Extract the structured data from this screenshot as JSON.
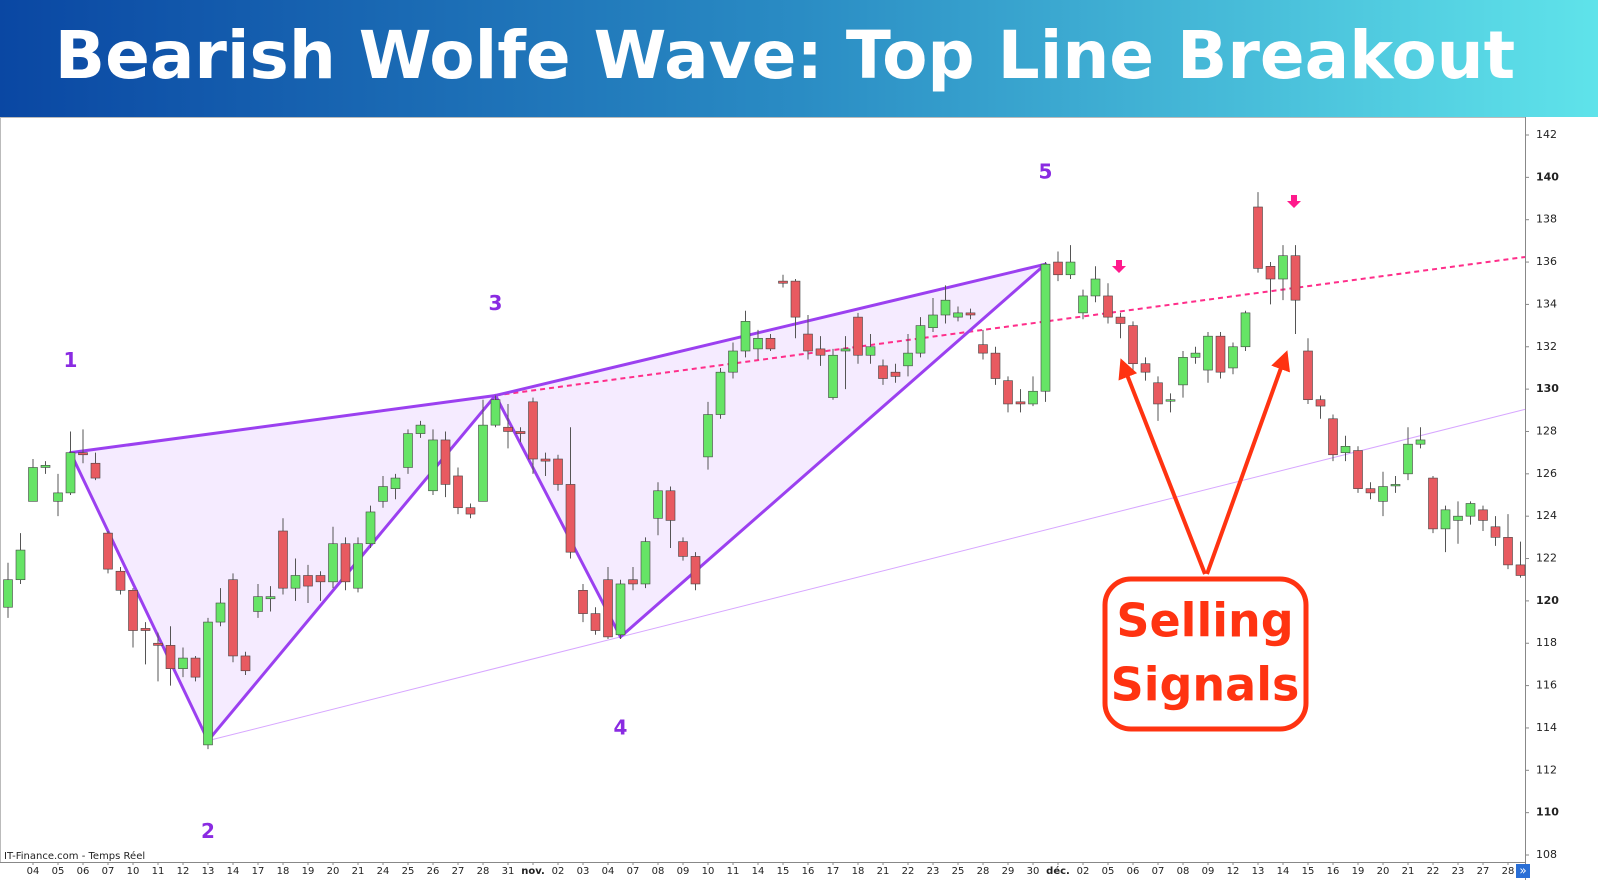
{
  "chart_data": {
    "type": "candlestick",
    "title": "Bearish Wolfe Wave: Top Line Breakout",
    "source": "IT-Finance.com - Temps Réel",
    "callout": [
      "Selling",
      "Signals"
    ],
    "nav_button": "»",
    "up_color": "#66e466",
    "down_color": "#e85a60",
    "categories": [
      null,
      null,
      "04",
      null,
      "05",
      null,
      "06",
      null,
      "07",
      null,
      "10",
      null,
      "11",
      null,
      "12",
      null,
      "13",
      null,
      "14",
      null,
      "17",
      null,
      "18",
      null,
      "19",
      null,
      "20",
      null,
      "21",
      null,
      "24",
      null,
      "25",
      null,
      "26",
      null,
      "27",
      null,
      "28",
      null,
      "31",
      null,
      "nov.",
      null,
      "02",
      null,
      "03",
      null,
      "04",
      null,
      "07",
      null,
      "08",
      null,
      "09",
      null,
      "10",
      null,
      "11",
      null,
      "14",
      null,
      "15",
      null,
      "16",
      null,
      "17",
      null,
      "18",
      null,
      "21",
      null,
      "22",
      null,
      "23",
      null,
      "25",
      null,
      "28",
      null,
      "29",
      null,
      "30",
      null,
      "déc.",
      null,
      "02",
      null,
      "05",
      null,
      "06",
      null,
      "07",
      null,
      "08",
      null,
      "09",
      null,
      "12",
      null,
      "13",
      null,
      "14",
      null,
      "15",
      null,
      "16",
      null,
      "19",
      null,
      "20",
      null,
      "21",
      null,
      "22",
      null,
      "23",
      null,
      "27",
      null,
      "28",
      null
    ],
    "open": [
      119.7,
      121.0,
      124.7,
      126.3,
      124.7,
      125.1,
      127.0,
      126.5,
      123.2,
      121.4,
      120.5,
      118.7,
      118.0,
      117.9,
      116.8,
      117.3,
      113.2,
      119.0,
      121.0,
      117.4,
      119.5,
      120.1,
      123.3,
      120.6,
      121.2,
      121.2,
      120.9,
      122.7,
      120.6,
      122.7,
      124.7,
      125.3,
      126.3,
      127.9,
      125.2,
      127.6,
      125.9,
      124.4,
      124.7,
      128.3,
      128.2,
      128.0,
      129.4,
      126.7,
      126.7,
      125.5,
      120.5,
      119.4,
      121.0,
      118.4,
      121.0,
      120.8,
      123.9,
      125.2,
      122.8,
      122.1,
      126.8,
      128.8,
      130.8,
      131.8,
      131.9,
      132.4,
      135.1,
      135.1,
      132.6,
      131.9,
      129.6,
      131.8,
      133.4,
      131.6,
      131.1,
      130.8,
      131.1,
      131.7,
      132.9,
      133.5,
      133.4,
      133.6,
      132.1,
      131.7,
      130.4,
      129.4,
      129.3,
      129.9,
      136.0,
      135.4,
      133.6,
      134.4,
      134.4,
      133.4,
      133.0,
      131.2,
      130.3,
      129.5,
      130.2,
      131.5,
      130.9,
      132.5,
      131.0,
      132.0,
      138.6,
      135.8,
      135.2,
      136.3,
      131.8,
      129.5,
      128.6,
      127.0,
      127.1,
      125.3,
      124.7,
      125.5,
      126.0,
      127.4,
      125.8,
      123.4,
      123.8,
      124.0,
      124.3,
      123.5,
      123.0,
      121.7
    ],
    "high": [
      121.8,
      123.2,
      126.7,
      126.6,
      126.0,
      128.0,
      128.1,
      127.0,
      123.3,
      121.6,
      120.6,
      119.0,
      118.5,
      118.8,
      117.8,
      117.4,
      119.2,
      120.6,
      121.3,
      117.6,
      120.8,
      120.7,
      123.9,
      122.0,
      121.7,
      121.4,
      123.5,
      123.0,
      123.0,
      124.5,
      125.9,
      126.0,
      128.1,
      128.5,
      128.1,
      128.0,
      126.3,
      124.6,
      129.5,
      129.7,
      129.3,
      128.2,
      129.6,
      127.0,
      126.9,
      128.2,
      120.8,
      119.7,
      121.6,
      121.0,
      121.6,
      123.0,
      125.6,
      125.4,
      123.0,
      122.3,
      129.4,
      131.0,
      132.2,
      133.7,
      132.8,
      132.6,
      135.4,
      135.2,
      133.5,
      132.5,
      131.9,
      132.5,
      133.6,
      132.6,
      131.4,
      131.2,
      132.6,
      133.4,
      134.3,
      134.9,
      133.9,
      133.8,
      132.8,
      132.0,
      130.6,
      130.0,
      130.6,
      136.0,
      136.5,
      136.8,
      134.7,
      135.8,
      135.0,
      133.6,
      133.2,
      131.5,
      130.6,
      129.8,
      131.8,
      132.0,
      132.7,
      132.7,
      132.2,
      133.7,
      139.3,
      136.0,
      136.8,
      136.8,
      132.4,
      129.7,
      128.8,
      127.8,
      127.3,
      125.6,
      126.1,
      125.9,
      128.2,
      128.2,
      125.9,
      124.5,
      124.7,
      124.7,
      124.5,
      124.0,
      124.1,
      122.8
    ],
    "low": [
      119.2,
      120.8,
      124.7,
      126.0,
      124.0,
      125.0,
      126.5,
      125.7,
      121.3,
      120.3,
      117.8,
      117.0,
      116.2,
      116.0,
      116.4,
      116.2,
      113.0,
      118.8,
      117.1,
      116.5,
      119.2,
      119.5,
      120.3,
      120.0,
      119.9,
      120.0,
      120.6,
      120.5,
      120.4,
      122.5,
      124.4,
      124.8,
      126.0,
      127.7,
      125.0,
      124.9,
      124.1,
      123.9,
      124.7,
      128.2,
      127.2,
      127.5,
      126.0,
      125.9,
      125.2,
      122.0,
      119.0,
      118.4,
      118.2,
      118.2,
      120.5,
      120.6,
      123.1,
      122.5,
      121.9,
      120.5,
      126.2,
      128.6,
      130.5,
      131.5,
      131.4,
      131.8,
      134.8,
      132.4,
      131.4,
      131.1,
      129.5,
      130.0,
      131.2,
      131.2,
      130.2,
      130.3,
      130.6,
      131.5,
      132.7,
      133.1,
      133.2,
      133.3,
      131.4,
      130.2,
      128.9,
      128.9,
      129.2,
      129.4,
      135.1,
      135.2,
      133.3,
      134.1,
      133.1,
      132.4,
      130.8,
      130.4,
      128.5,
      128.9,
      129.6,
      131.2,
      130.3,
      130.5,
      130.7,
      131.8,
      135.5,
      134.0,
      134.2,
      132.6,
      129.3,
      128.6,
      126.6,
      126.6,
      125.1,
      124.8,
      124.0,
      125.1,
      125.7,
      127.2,
      123.2,
      122.3,
      122.7,
      123.6,
      123.3,
      122.6,
      121.5,
      121.1
    ],
    "close": [
      121.0,
      122.4,
      126.3,
      126.4,
      125.1,
      127.0,
      126.9,
      125.8,
      121.5,
      120.5,
      118.6,
      118.6,
      117.9,
      116.8,
      117.3,
      116.4,
      119.0,
      119.9,
      117.4,
      116.7,
      120.2,
      120.2,
      120.6,
      121.2,
      120.7,
      120.9,
      122.7,
      120.9,
      122.7,
      124.2,
      125.4,
      125.8,
      127.9,
      128.3,
      127.6,
      125.5,
      124.4,
      124.1,
      128.3,
      129.5,
      128.0,
      127.9,
      126.7,
      126.6,
      125.5,
      122.3,
      119.4,
      118.6,
      118.3,
      120.8,
      120.8,
      122.8,
      125.2,
      123.8,
      122.1,
      120.8,
      128.8,
      130.8,
      131.8,
      133.2,
      132.4,
      131.9,
      135.0,
      133.4,
      131.8,
      131.6,
      131.6,
      131.9,
      131.6,
      132.0,
      130.5,
      130.6,
      131.7,
      133.0,
      133.5,
      134.2,
      133.6,
      133.5,
      131.7,
      130.5,
      129.3,
      129.3,
      129.9,
      135.9,
      135.4,
      136.0,
      134.4,
      135.2,
      133.4,
      133.1,
      131.2,
      130.8,
      129.3,
      129.5,
      131.5,
      131.7,
      132.5,
      130.8,
      132.0,
      133.6,
      135.7,
      135.2,
      136.3,
      134.2,
      129.5,
      129.2,
      126.9,
      127.3,
      125.3,
      125.1,
      125.4,
      125.5,
      127.4,
      127.6,
      123.4,
      124.3,
      124.0,
      124.6,
      123.8,
      123.0,
      121.7,
      121.2
    ],
    "waves": [
      {
        "label": "1",
        "index": 5,
        "price": 127.0
      },
      {
        "label": "2",
        "index": 16,
        "price": 113.4
      },
      {
        "label": "3",
        "index": 39,
        "price": 129.7
      },
      {
        "label": "4",
        "index": 49,
        "price": 118.3
      },
      {
        "label": "5",
        "index": 83,
        "price": 135.9
      }
    ],
    "ylim": [
      107.67,
      142.85
    ],
    "yticks": [
      108,
      110,
      112,
      114,
      116,
      118,
      120,
      122,
      124,
      126,
      128,
      130,
      132,
      134,
      136,
      138,
      140,
      142
    ]
  }
}
